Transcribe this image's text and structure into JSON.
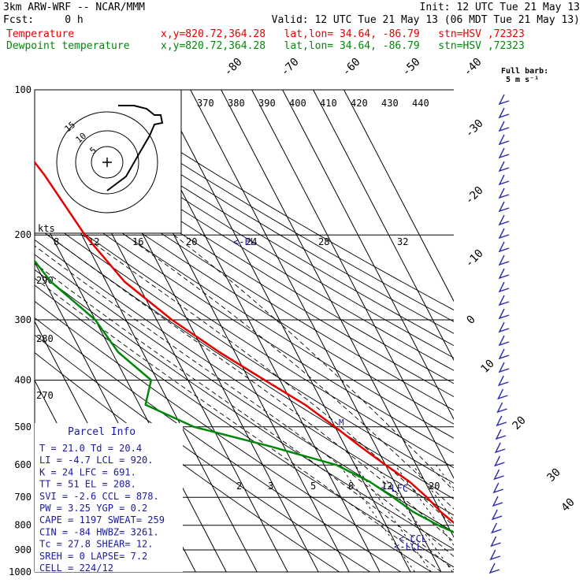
{
  "header": {
    "line1_left": "3km ARW-WRF -- NCAR/MMM",
    "line1_right": "Init: 12 UTC Tue 21 May 13",
    "line2_left": "Fcst:     0 h",
    "line2_right": "Valid: 12 UTC Tue 21 May 13 (06 MDT Tue 21 May 13)",
    "temp_label": "Temperature",
    "dew_label": "Dewpoint temperature",
    "location": "x,y=820.72,364.28   lat,lon= 34.64, -86.79   stn=HSV ,72323"
  },
  "colors": {
    "temperature": "#e60000",
    "dewpoint": "#00880a",
    "barbs": "#2b2bb0",
    "parcel": "#1a1aa0"
  },
  "chart_data": {
    "type": "line",
    "chart_kind": "skew-t log-p sounding",
    "pressure_labels": [
      "100",
      "200",
      "300",
      "400",
      "500",
      "600",
      "700",
      "800",
      "900",
      "1000"
    ],
    "pressure_levels": [
      100,
      200,
      300,
      400,
      500,
      600,
      700,
      800,
      900,
      1000
    ],
    "temp_ticks": [
      "-80",
      "-70",
      "-60",
      "-50",
      "-40",
      "-30",
      "-20",
      "-10",
      "0",
      "10",
      "20",
      "30",
      "40"
    ],
    "theta_labels": [
      "370",
      "380",
      "390",
      "400",
      "410",
      "420",
      "430",
      "440"
    ],
    "mixing_ratio_labels": [
      "2",
      "3",
      "5",
      "8",
      "12",
      "20"
    ],
    "left_axis_labels": [
      "290",
      "280",
      "270"
    ],
    "kts_label": "kts",
    "kts_ticks": [
      "8",
      "12",
      "16",
      "20",
      "24",
      "28",
      "32"
    ],
    "barb_legend": [
      "Full barb:",
      "5 m s⁻¹"
    ],
    "annotations": [
      "<-LFC",
      "<-CCL",
      "<-LCL",
      "<-EL",
      "M"
    ],
    "series": [
      {
        "name": "Temperature",
        "pressure": [
          100,
          150,
          200,
          250,
          300,
          350,
          400,
          450,
          500,
          550,
          600,
          650,
          700,
          750,
          800,
          850,
          880,
          900,
          925,
          950,
          975
        ],
        "values": [
          -69,
          -62,
          -59,
          -54,
          -45,
          -35,
          -25,
          -16,
          -10,
          -5,
          0,
          5,
          8,
          10,
          13,
          17,
          19,
          20.8,
          21.0,
          20.0,
          18.0
        ]
      },
      {
        "name": "Dewpoint temperature",
        "pressure": [
          100,
          150,
          200,
          250,
          300,
          350,
          400,
          450,
          500,
          550,
          600,
          650,
          700,
          750,
          800,
          850,
          880,
          900,
          925,
          950,
          975
        ],
        "values": [
          -78,
          -88,
          -82,
          -78,
          -70,
          -68,
          -62,
          -68,
          -56,
          -34,
          -16,
          -8,
          -3,
          1,
          7,
          14,
          17,
          19,
          20.4,
          19.5,
          17.0
        ]
      }
    ]
  },
  "parcel_info": {
    "title": "Parcel Info",
    "rows": [
      "T  =   21.0  Td =  20.4",
      "LI =   -4.7  LCL =  920.",
      "K  =     24  LFC =  691.",
      "TT =     51  EL  =  208.",
      "SVI =  -2.6  CCL =  878.",
      "PW =   3.25  YGP =   0.2",
      "CAPE =  1197  SWEAT=  259",
      "CIN =   -84  HWBZ= 3261.",
      "Tc =   27.8  SHEAR=  12.",
      "SREH =    0  LAPSE=  7.2",
      "CELL = 224/12"
    ]
  },
  "hodograph": {
    "ring_labels": [
      "5",
      "10",
      "15"
    ]
  }
}
